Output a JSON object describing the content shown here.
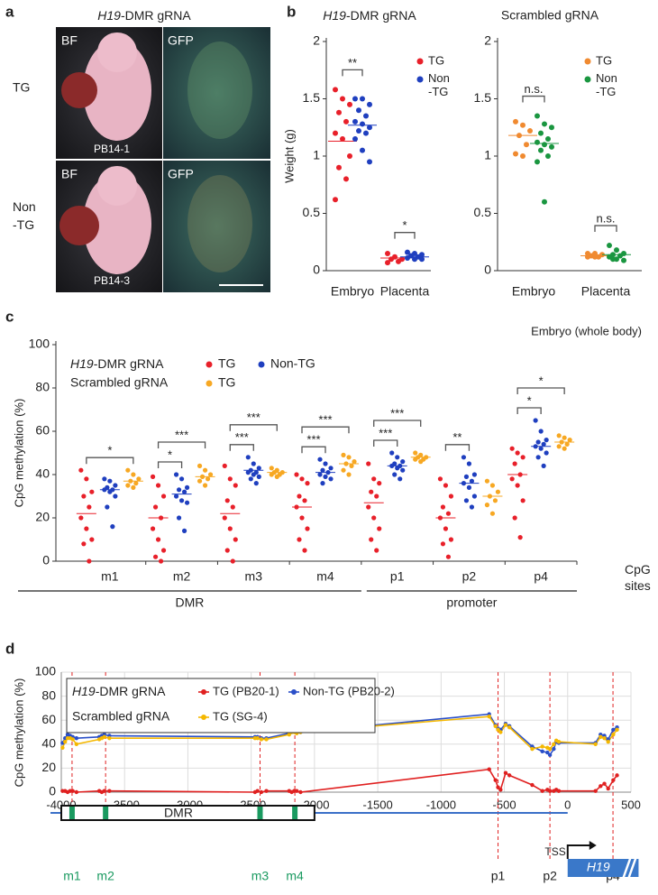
{
  "photo_panel": {
    "panel": "a",
    "title": "H19-DMR gRNA",
    "channels": [
      "BF",
      "GFP"
    ],
    "rows": [
      {
        "label": "TG",
        "id": "PB14-1"
      },
      {
        "label": "Non -TG",
        "id": "PB14-3"
      }
    ]
  },
  "chart_data": [
    {
      "type": "strip",
      "panel": "b",
      "title": "H19-DMR gRNA",
      "ylabel": "Weight (g)",
      "categories": [
        "Embryo",
        "Placenta"
      ],
      "ylim": [
        0,
        2
      ],
      "yticks": [
        0,
        0.5,
        1,
        1.5,
        2
      ],
      "series": [
        {
          "name": "TG",
          "color": "#e8202a",
          "values": [
            [
              1.58,
              1.5,
              1.45,
              1.38,
              1.3,
              1.2,
              1.15,
              1.0,
              0.9,
              0.8,
              0.62
            ],
            [
              0.15,
              0.12,
              0.1,
              0.1,
              0.08,
              0.07
            ]
          ],
          "means": [
            1.13,
            0.11
          ]
        },
        {
          "name": "Non -TG",
          "color": "#1f3fbf",
          "values": [
            [
              1.5,
              1.5,
              1.45,
              1.4,
              1.35,
              1.3,
              1.28,
              1.25,
              1.22,
              1.2,
              1.15,
              1.05,
              0.95
            ],
            [
              0.16,
              0.15,
              0.14,
              0.13,
              0.12,
              0.11,
              0.1,
              0.1
            ]
          ],
          "means": [
            1.27,
            0.12
          ]
        }
      ],
      "annotations": [
        {
          "category": 0,
          "series": [
            0,
            1
          ],
          "text": "**"
        },
        {
          "category": 1,
          "series": [
            0,
            1
          ],
          "text": "*"
        }
      ]
    },
    {
      "type": "strip",
      "panel": "",
      "title": "Scrambled gRNA",
      "categories": [
        "Embryo",
        "Placenta"
      ],
      "ylim": [
        0,
        2
      ],
      "yticks": [
        0,
        0.5,
        1,
        1.5,
        2
      ],
      "series": [
        {
          "name": "TG",
          "color": "#f08a30",
          "values": [
            [
              1.3,
              1.27,
              1.22,
              1.18,
              1.1,
              1.02,
              1.0
            ],
            [
              0.15,
              0.15,
              0.14,
              0.13,
              0.12,
              0.12,
              0.12
            ]
          ],
          "means": [
            1.18,
            0.13
          ]
        },
        {
          "name": "Non -TG",
          "color": "#1a9640",
          "values": [
            [
              1.35,
              1.28,
              1.25,
              1.2,
              1.15,
              1.12,
              1.1,
              1.08,
              1.05,
              1.0,
              0.95,
              0.6
            ],
            [
              0.22,
              0.18,
              0.15,
              0.14,
              0.13,
              0.12,
              0.1,
              0.09,
              0.1
            ]
          ],
          "means": [
            1.11,
            0.14
          ]
        }
      ],
      "annotations": [
        {
          "category": 0,
          "series": [
            0,
            1
          ],
          "text": "n.s."
        },
        {
          "category": 1,
          "series": [
            0,
            1
          ],
          "text": "n.s."
        }
      ]
    },
    {
      "type": "strip",
      "panel": "c",
      "note": "Embryo (whole body)",
      "ylabel": "CpG methylation (%)",
      "xlabel": "CpG sites",
      "categories": [
        "m1",
        "m2",
        "m3",
        "m4",
        "p1",
        "p2",
        "p4"
      ],
      "category_groups": [
        {
          "label": "DMR",
          "categories": [
            0,
            3
          ]
        },
        {
          "label": "promoter",
          "categories": [
            4,
            6
          ]
        }
      ],
      "ylim": [
        0,
        100
      ],
      "yticks": [
        0,
        20,
        40,
        60,
        80,
        100
      ],
      "legend_groups": [
        {
          "label": "H19-DMR gRNA",
          "series": [
            0,
            1
          ]
        },
        {
          "label": "Scrambled gRNA",
          "series": [
            2
          ]
        }
      ],
      "series": [
        {
          "name": "TG",
          "color": "#e8202a",
          "values": [
            [
              42,
              38,
              32,
              30,
              25,
              20,
              15,
              10,
              8,
              0
            ],
            [
              39,
              35,
              30,
              25,
              20,
              15,
              10,
              5,
              2,
              0
            ],
            [
              44,
              38,
              35,
              28,
              25,
              20,
              15,
              10,
              5,
              0
            ],
            [
              40,
              38,
              36,
              30,
              28,
              25,
              20,
              15,
              10,
              5
            ],
            [
              45,
              38,
              36,
              32,
              30,
              25,
              20,
              15,
              10,
              5
            ],
            [
              38,
              35,
              30,
              25,
              22,
              20,
              15,
              10,
              8,
              2
            ],
            [
              52,
              50,
              48,
              45,
              40,
              38,
              35,
              28,
              20,
              11
            ]
          ],
          "means": [
            22,
            20,
            22,
            25,
            27,
            20,
            40
          ]
        },
        {
          "name": "Non-TG",
          "color": "#1f3fbf",
          "values": [
            [
              38,
              37,
              35,
              34,
              33,
              33,
              32,
              30,
              25,
              16
            ],
            [
              40,
              38,
              34,
              33,
              32,
              30,
              28,
              27,
              20,
              14
            ],
            [
              48,
              45,
              43,
              42,
              41,
              41,
              40,
              39,
              38,
              36
            ],
            [
              47,
              45,
              43,
              42,
              41,
              40,
              39,
              38,
              36
            ],
            [
              50,
              48,
              46,
              45,
              44,
              44,
              43,
              42,
              40,
              38
            ],
            [
              48,
              45,
              40,
              39,
              37,
              36,
              34,
              30,
              28,
              25
            ],
            [
              65,
              60,
              56,
              55,
              54,
              53,
              52,
              50,
              48,
              44
            ]
          ],
          "means": [
            33,
            31,
            42,
            41,
            44,
            36,
            53
          ]
        },
        {
          "name": "TG",
          "color": "#f7a823",
          "values": [
            [
              42,
              40,
              38,
              37,
              36,
              35,
              34
            ],
            [
              44,
              42,
              40,
              39,
              38,
              37,
              35
            ],
            [
              43,
              42,
              41,
              41,
              40,
              40,
              39
            ],
            [
              49,
              48,
              46,
              45,
              44,
              42,
              40
            ],
            [
              50,
              49,
              48,
              48,
              47,
              47,
              46
            ],
            [
              37,
              35,
              32,
              30,
              28,
              26,
              22
            ],
            [
              58,
              57,
              56,
              55,
              54,
              53,
              52
            ]
          ],
          "means": [
            37,
            39,
            41,
            45,
            48,
            30,
            55
          ]
        }
      ],
      "annotations": [
        {
          "category": 0,
          "series": [
            0,
            2
          ],
          "text": "*"
        },
        {
          "category": 1,
          "series": [
            0,
            1
          ],
          "text": "*"
        },
        {
          "category": 1,
          "series": [
            0,
            2
          ],
          "text": "***"
        },
        {
          "category": 2,
          "series": [
            0,
            1
          ],
          "text": "***"
        },
        {
          "category": 2,
          "series": [
            0,
            2
          ],
          "text": "***"
        },
        {
          "category": 3,
          "series": [
            0,
            1
          ],
          "text": "***"
        },
        {
          "category": 3,
          "series": [
            0,
            2
          ],
          "text": "***"
        },
        {
          "category": 4,
          "series": [
            0,
            1
          ],
          "text": "***"
        },
        {
          "category": 4,
          "series": [
            0,
            2
          ],
          "text": "***"
        },
        {
          "category": 5,
          "series": [
            0,
            1
          ],
          "text": "**"
        },
        {
          "category": 6,
          "series": [
            0,
            1
          ],
          "text": "*"
        },
        {
          "category": 6,
          "series": [
            0,
            2
          ],
          "text": "*"
        }
      ]
    },
    {
      "type": "line",
      "panel": "d",
      "ylabel": "CpG methylation (%)",
      "grid": true,
      "xlim": [
        -4000,
        500
      ],
      "xticks": [
        -4000,
        -3500,
        -3000,
        -2500,
        -2000,
        -1500,
        -1000,
        -500,
        0,
        500
      ],
      "ylim": [
        0,
        100
      ],
      "yticks": [
        0,
        20,
        40,
        60,
        80,
        100
      ],
      "x": [
        -3990,
        -3970,
        -3950,
        -3930,
        -3910,
        -3880,
        -3700,
        -3680,
        -3660,
        -3620,
        -2470,
        -2450,
        -2420,
        -2380,
        -2200,
        -2180,
        -2160,
        -2140,
        -2110,
        -620,
        -570,
        -550,
        -530,
        -490,
        -460,
        -280,
        -200,
        -160,
        -140,
        -110,
        -90,
        -70,
        220,
        260,
        290,
        320,
        360,
        390
      ],
      "legend_groups": [
        {
          "label": "H19-DMR gRNA",
          "series": [
            0,
            1
          ]
        },
        {
          "label": "Scrambled gRNA",
          "series": [
            2
          ]
        }
      ],
      "series": [
        {
          "name": "TG (PB20-1)",
          "color": "#e02020",
          "values": [
            1,
            1,
            0,
            1,
            1,
            0,
            1,
            0,
            1,
            1,
            0,
            1,
            0,
            1,
            1,
            0,
            1,
            1,
            0,
            19,
            10,
            4,
            2,
            16,
            14,
            6,
            1,
            2,
            1,
            1,
            2,
            1,
            1,
            5,
            7,
            3,
            10,
            14
          ]
        },
        {
          "name": "Non-TG (PB20-2)",
          "color": "#2a4fc8",
          "values": [
            41,
            45,
            48,
            47,
            46,
            45,
            46,
            47,
            48,
            47,
            46,
            46,
            45,
            45,
            49,
            50,
            51,
            50,
            50,
            65,
            56,
            53,
            52,
            57,
            55,
            38,
            34,
            33,
            31,
            36,
            42,
            41,
            41,
            48,
            47,
            44,
            52,
            54
          ]
        },
        {
          "name": "TG (SG-4)",
          "color": "#f5b800",
          "values": [
            37,
            42,
            45,
            45,
            44,
            40,
            44,
            45,
            46,
            45,
            45,
            45,
            44,
            44,
            48,
            50,
            50,
            49,
            50,
            63,
            55,
            52,
            50,
            56,
            54,
            36,
            38,
            37,
            36,
            40,
            43,
            42,
            40,
            46,
            45,
            42,
            48,
            52
          ]
        }
      ],
      "sites": [
        {
          "label": "m1",
          "x": -3915,
          "color": "#1a9a60"
        },
        {
          "label": "m2",
          "x": -3650,
          "color": "#1a9a60"
        },
        {
          "label": "m3",
          "x": -2430,
          "color": "#1a9a60"
        },
        {
          "label": "m4",
          "x": -2155,
          "color": "#1a9a60"
        },
        {
          "label": "p1",
          "x": -550,
          "color": "#222222"
        },
        {
          "label": "p2",
          "x": -140,
          "color": "#222222"
        },
        {
          "label": "p4",
          "x": 358,
          "color": "#222222"
        }
      ],
      "regions": [
        {
          "label": "DMR",
          "start": -4000,
          "end": -2000
        },
        {
          "label": "H19",
          "start": 0,
          "end": 560
        }
      ],
      "tss_label": "TSS"
    }
  ]
}
